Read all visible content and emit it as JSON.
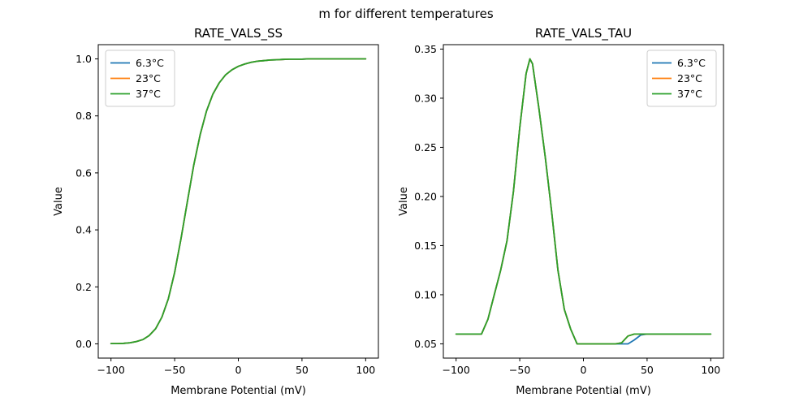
{
  "figure_title": "m for different temperatures",
  "colors": {
    "blue": "#1f77b4",
    "orange": "#ff7f0e",
    "green": "#2ca02c",
    "axis": "#000000",
    "legend_border": "#cccccc",
    "background": "#ffffff"
  },
  "chart_data": [
    {
      "type": "line",
      "title": "RATE_VALS_SS",
      "xlabel": "Membrane Potential (mV)",
      "ylabel": "Value",
      "xlim": [
        -110,
        110
      ],
      "ylim": [
        -0.05,
        1.05
      ],
      "grid": false,
      "xtick_vals": [
        -100,
        -50,
        0,
        50,
        100
      ],
      "xtick_labels": [
        "−100",
        "−50",
        "0",
        "50",
        "100"
      ],
      "ytick_vals": [
        0.0,
        0.2,
        0.4,
        0.6,
        0.8,
        1.0
      ],
      "ytick_labels": [
        "0.0",
        "0.2",
        "0.4",
        "0.6",
        "0.8",
        "1.0"
      ],
      "legend_position": "upper-left",
      "x": [
        -100,
        -95,
        -90,
        -85,
        -80,
        -75,
        -70,
        -65,
        -60,
        -55,
        -50,
        -45,
        -40,
        -35,
        -30,
        -25,
        -20,
        -15,
        -10,
        -5,
        0,
        5,
        10,
        15,
        20,
        25,
        30,
        35,
        40,
        45,
        50,
        55,
        60,
        65,
        70,
        75,
        80,
        85,
        90,
        95,
        100
      ],
      "series": [
        {
          "name": "6.3°C",
          "color": "#1f77b4",
          "values": [
            0.001,
            0.001,
            0.002,
            0.004,
            0.008,
            0.015,
            0.029,
            0.053,
            0.094,
            0.158,
            0.251,
            0.369,
            0.5,
            0.627,
            0.734,
            0.817,
            0.876,
            0.916,
            0.944,
            0.962,
            0.974,
            0.982,
            0.988,
            0.992,
            0.994,
            0.996,
            0.997,
            0.998,
            0.999,
            0.999,
            0.999,
            1.0,
            1.0,
            1.0,
            1.0,
            1.0,
            1.0,
            1.0,
            1.0,
            1.0,
            1.0
          ]
        },
        {
          "name": "23°C",
          "color": "#ff7f0e",
          "values": [
            0.001,
            0.001,
            0.002,
            0.004,
            0.008,
            0.015,
            0.029,
            0.053,
            0.094,
            0.158,
            0.251,
            0.369,
            0.5,
            0.627,
            0.734,
            0.817,
            0.876,
            0.916,
            0.944,
            0.962,
            0.974,
            0.982,
            0.988,
            0.992,
            0.994,
            0.996,
            0.997,
            0.998,
            0.999,
            0.999,
            0.999,
            1.0,
            1.0,
            1.0,
            1.0,
            1.0,
            1.0,
            1.0,
            1.0,
            1.0,
            1.0
          ]
        },
        {
          "name": "37°C",
          "color": "#2ca02c",
          "values": [
            0.001,
            0.001,
            0.002,
            0.004,
            0.008,
            0.015,
            0.029,
            0.053,
            0.094,
            0.158,
            0.251,
            0.369,
            0.5,
            0.627,
            0.734,
            0.817,
            0.876,
            0.916,
            0.944,
            0.962,
            0.974,
            0.982,
            0.988,
            0.992,
            0.994,
            0.996,
            0.997,
            0.998,
            0.999,
            0.999,
            0.999,
            1.0,
            1.0,
            1.0,
            1.0,
            1.0,
            1.0,
            1.0,
            1.0,
            1.0,
            1.0
          ]
        }
      ]
    },
    {
      "type": "line",
      "title": "RATE_VALS_TAU",
      "xlabel": "Membrane Potential (mV)",
      "ylabel": "Value",
      "xlim": [
        -110,
        110
      ],
      "ylim": [
        0.0355,
        0.3545
      ],
      "grid": false,
      "xtick_vals": [
        -100,
        -50,
        0,
        50,
        100
      ],
      "xtick_labels": [
        "−100",
        "−50",
        "0",
        "50",
        "100"
      ],
      "ytick_vals": [
        0.05,
        0.1,
        0.15,
        0.2,
        0.25,
        0.3,
        0.35
      ],
      "ytick_labels": [
        "0.05",
        "0.10",
        "0.15",
        "0.20",
        "0.25",
        "0.30",
        "0.35"
      ],
      "legend_position": "upper-right",
      "x": [
        -100,
        -95,
        -90,
        -85,
        -80,
        -75,
        -70,
        -65,
        -60,
        -55,
        -50,
        -45,
        -42,
        -40,
        -35,
        -30,
        -25,
        -20,
        -15,
        -10,
        -5,
        0,
        5,
        10,
        15,
        20,
        25,
        30,
        35,
        40,
        45,
        50,
        55,
        60,
        65,
        70,
        75,
        80,
        85,
        90,
        95,
        100
      ],
      "series": [
        {
          "name": "6.3°C",
          "color": "#1f77b4",
          "values": [
            0.06,
            0.06,
            0.06,
            0.06,
            0.06,
            0.075,
            0.1,
            0.125,
            0.155,
            0.205,
            0.27,
            0.325,
            0.34,
            0.335,
            0.29,
            0.24,
            0.185,
            0.125,
            0.085,
            0.065,
            0.05,
            0.05,
            0.05,
            0.05,
            0.05,
            0.05,
            0.05,
            0.05,
            0.05,
            0.054,
            0.059,
            0.06,
            0.06,
            0.06,
            0.06,
            0.06,
            0.06,
            0.06,
            0.06,
            0.06,
            0.06,
            0.06
          ]
        },
        {
          "name": "23°C",
          "color": "#ff7f0e",
          "values": [
            0.06,
            0.06,
            0.06,
            0.06,
            0.06,
            0.075,
            0.1,
            0.125,
            0.155,
            0.205,
            0.27,
            0.325,
            0.34,
            0.335,
            0.29,
            0.24,
            0.185,
            0.125,
            0.085,
            0.065,
            0.05,
            0.05,
            0.05,
            0.05,
            0.05,
            0.05,
            0.05,
            0.051,
            0.058,
            0.06,
            0.06,
            0.06,
            0.06,
            0.06,
            0.06,
            0.06,
            0.06,
            0.06,
            0.06,
            0.06,
            0.06,
            0.06
          ]
        },
        {
          "name": "37°C",
          "color": "#2ca02c",
          "values": [
            0.06,
            0.06,
            0.06,
            0.06,
            0.06,
            0.075,
            0.1,
            0.125,
            0.155,
            0.205,
            0.27,
            0.325,
            0.34,
            0.335,
            0.29,
            0.24,
            0.185,
            0.125,
            0.085,
            0.065,
            0.05,
            0.05,
            0.05,
            0.05,
            0.05,
            0.05,
            0.05,
            0.051,
            0.058,
            0.06,
            0.06,
            0.06,
            0.06,
            0.06,
            0.06,
            0.06,
            0.06,
            0.06,
            0.06,
            0.06,
            0.06,
            0.06
          ]
        }
      ]
    }
  ]
}
